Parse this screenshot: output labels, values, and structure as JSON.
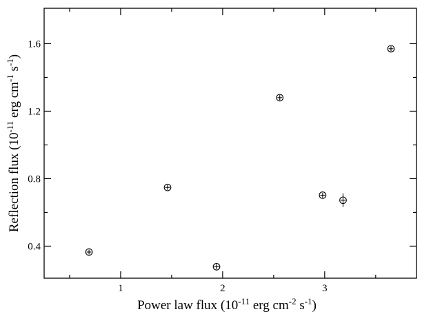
{
  "chart_data": {
    "type": "scatter",
    "xlabel": {
      "parts": [
        {
          "t": "Power law flux (10",
          "sup": false
        },
        {
          "t": "-11",
          "sup": true
        },
        {
          "t": " erg cm",
          "sup": false
        },
        {
          "t": "-2",
          "sup": true
        },
        {
          "t": " s",
          "sup": false
        },
        {
          "t": "-1",
          "sup": true
        },
        {
          "t": ")",
          "sup": false
        }
      ]
    },
    "ylabel": {
      "parts": [
        {
          "t": "Reflection flux (10",
          "sup": false
        },
        {
          "t": "-11",
          "sup": true
        },
        {
          "t": " erg cm",
          "sup": false
        },
        {
          "t": "-1",
          "sup": true
        },
        {
          "t": " s",
          "sup": false
        },
        {
          "t": "-1",
          "sup": true
        },
        {
          "t": ")",
          "sup": false
        }
      ]
    },
    "xlim": [
      0.25,
      3.9
    ],
    "ylim": [
      0.21,
      1.81
    ],
    "x_ticks_major": [
      "1",
      "2",
      "3"
    ],
    "x_ticks_minor": [
      0.5,
      1.5,
      2.5,
      3.5
    ],
    "y_ticks_major": [
      "0.4",
      "0.8",
      "1.2",
      "1.6"
    ],
    "y_ticks_minor": [
      0.6,
      1.0,
      1.4
    ],
    "grid": false,
    "marker": "open-circle",
    "points": [
      {
        "x": 0.69,
        "y": 0.365,
        "yerr": 0.008
      },
      {
        "x": 1.46,
        "y": 0.748,
        "yerr": 0.012
      },
      {
        "x": 1.94,
        "y": 0.278,
        "yerr": 0.008
      },
      {
        "x": 2.56,
        "y": 1.28,
        "yerr": 0.015
      },
      {
        "x": 2.98,
        "y": 0.702,
        "yerr": 0.01
      },
      {
        "x": 3.18,
        "y": 0.672,
        "yerr": 0.04
      },
      {
        "x": 3.65,
        "y": 1.57,
        "yerr": 0.015
      }
    ]
  }
}
